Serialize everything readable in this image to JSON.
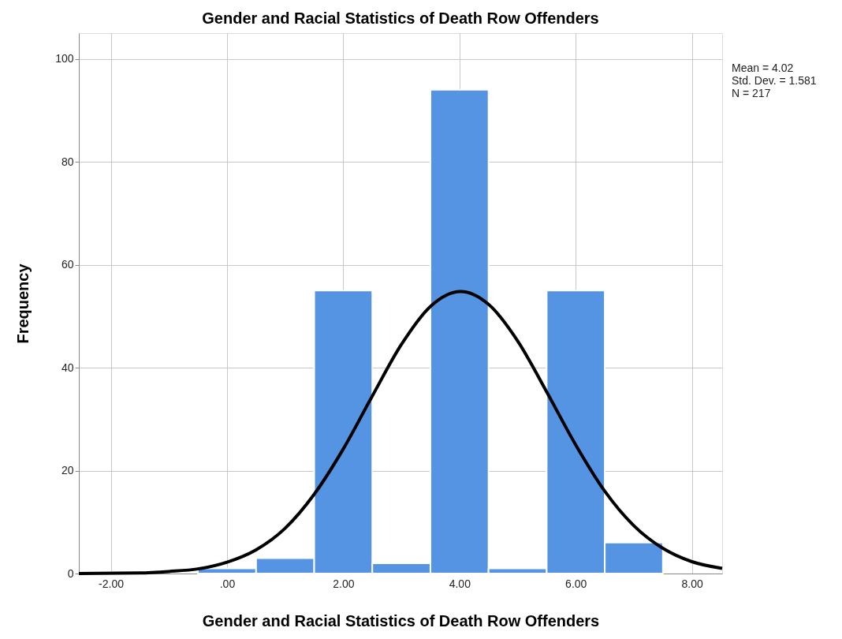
{
  "chart_data": {
    "type": "histogram",
    "title": "Gender and Racial Statistics of Death Row Offenders",
    "xlabel": "Gender and Racial Statistics of Death Row Offenders",
    "ylabel": "Frequency",
    "bins": [
      -0.5,
      0.5,
      1.5,
      2.5,
      3.5,
      4.5,
      5.5,
      6.5,
      7.5
    ],
    "values": [
      1,
      3,
      55,
      2,
      94,
      1,
      55,
      6
    ],
    "color": "#5593e3",
    "series": [
      {
        "type": "line",
        "color": "#000000",
        "x": [
          -2.55,
          -1.5,
          -1,
          -0.5,
          0,
          0.5,
          1,
          1.5,
          2,
          2.5,
          3,
          3.5,
          4.02,
          4.5,
          5,
          5.5,
          6,
          6.5,
          7,
          7.5,
          8,
          8.52
        ],
        "values": [
          0,
          0.1,
          0.4,
          0.9,
          2.2,
          4.6,
          8.8,
          15.4,
          24.2,
          34.5,
          44.5,
          51.9,
          54.8,
          52.3,
          45.2,
          35.3,
          25.0,
          16.0,
          9.3,
          4.9,
          2.3,
          1.0
        ]
      }
    ],
    "xlim": [
      -2.55,
      8.52
    ],
    "ylim": [
      0,
      105
    ],
    "xticks": [
      {
        "value": -2,
        "label": "-2.00"
      },
      {
        "value": 0,
        "label": ".00"
      },
      {
        "value": 2,
        "label": "2.00"
      },
      {
        "value": 4,
        "label": "4.00"
      },
      {
        "value": 6,
        "label": "6.00"
      },
      {
        "value": 8,
        "label": "8.00"
      }
    ],
    "yticks": [
      0,
      20,
      40,
      60,
      80,
      100
    ],
    "grid": true,
    "annotations": [
      "Mean = 4.02",
      "Std. Dev. = 1.581",
      "N = 217"
    ]
  }
}
